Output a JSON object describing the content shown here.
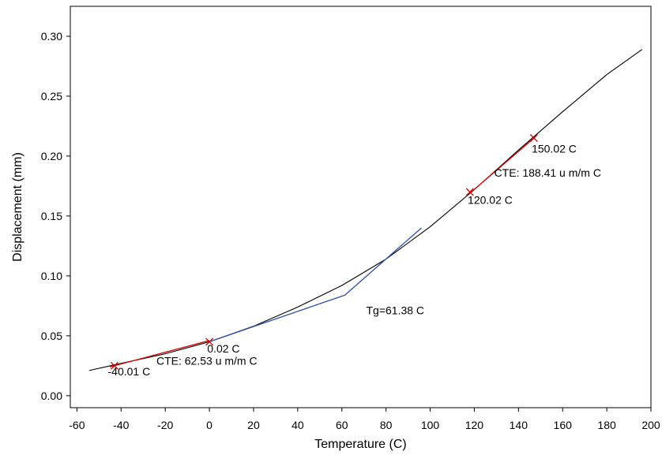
{
  "chart_data": {
    "type": "line",
    "title": "",
    "xlabel": "Temperature (C)",
    "ylabel": "Displacement (mm)",
    "xlim": [
      -63,
      200
    ],
    "ylim": [
      -0.01,
      0.325
    ],
    "x_ticks": [
      -60,
      -40,
      -20,
      0,
      20,
      40,
      60,
      80,
      100,
      120,
      140,
      160,
      180,
      200
    ],
    "y_ticks": [
      0.0,
      0.05,
      0.1,
      0.15,
      0.2,
      0.25,
      0.3
    ],
    "x_tick_labels": [
      "-60",
      "-40",
      "-20",
      "0",
      "20",
      "40",
      "60",
      "80",
      "100",
      "120",
      "140",
      "160",
      "180",
      "200"
    ],
    "y_tick_labels": [
      "0.00",
      "0.05",
      "0.10",
      "0.15",
      "0.20",
      "0.25",
      "0.30"
    ],
    "grid": false,
    "series": [
      {
        "color": "#000000",
        "x": [
          -54.5,
          -40,
          -20,
          0,
          20,
          40,
          60,
          80,
          100,
          120,
          140,
          160,
          180,
          196
        ],
        "y": [
          0.021,
          0.027,
          0.035,
          0.045,
          0.058,
          0.074,
          0.092,
          0.114,
          0.141,
          0.172,
          0.205,
          0.237,
          0.268,
          0.289
        ]
      },
      {
        "color": "#2f4f9f",
        "x": [
          0,
          61.38,
          96
        ],
        "y": [
          0.045,
          0.084,
          0.14
        ]
      },
      {
        "color": "#cc0000",
        "x": [
          -45,
          0
        ],
        "y": [
          0.024,
          0.046
        ]
      },
      {
        "color": "#cc0000",
        "x": [
          118,
          147
        ],
        "y": [
          0.169,
          0.215
        ]
      }
    ],
    "markers": [
      {
        "x": -43,
        "y": 0.025,
        "color": "#cc0000"
      },
      {
        "x": 0,
        "y": 0.045,
        "color": "#cc0000"
      },
      {
        "x": 118,
        "y": 0.17,
        "color": "#cc0000"
      },
      {
        "x": 147,
        "y": 0.215,
        "color": "#cc0000"
      }
    ],
    "annotations": [
      {
        "text": "-40.01 C",
        "x": -46,
        "y": 0.017
      },
      {
        "text": "0.02 C",
        "x": -1,
        "y": 0.036
      },
      {
        "text": "CTE: 62.53 u m/m C",
        "x": -24,
        "y": 0.026
      },
      {
        "text": "Tg=61.38 C",
        "x": 71,
        "y": 0.068
      },
      {
        "text": "120.02 C",
        "x": 117,
        "y": 0.16
      },
      {
        "text": "150.02 C",
        "x": 146,
        "y": 0.203
      },
      {
        "text": "CTE: 188.41 u m/m C",
        "x": 129,
        "y": 0.183
      }
    ]
  }
}
